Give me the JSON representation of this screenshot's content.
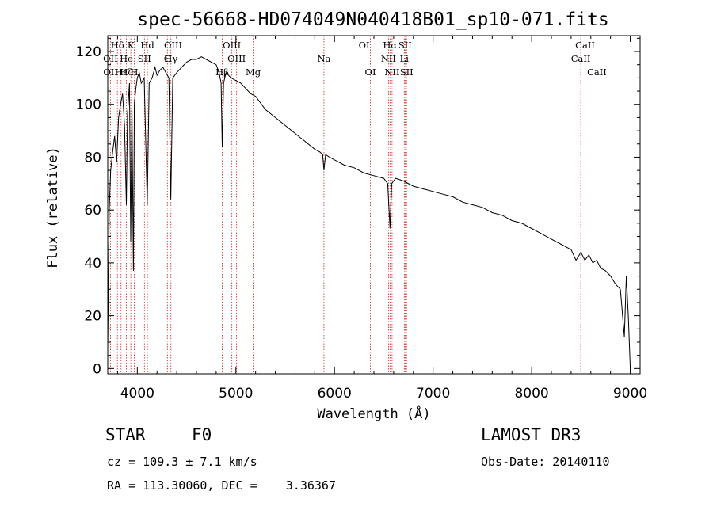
{
  "chart_data": {
    "type": "line",
    "title": "spec-56668-HD074049N040418B01_sp10-071.fits",
    "xlabel": "Wavelength (Å)",
    "ylabel": "Flux (relative)",
    "xlim": [
      3700,
      9100
    ],
    "ylim": [
      -2,
      126
    ],
    "xticks": [
      4000,
      5000,
      6000,
      7000,
      8000,
      9000
    ],
    "yticks": [
      0,
      20,
      40,
      60,
      80,
      100,
      120
    ],
    "series": [
      {
        "name": "flux",
        "x": [
          3700,
          3715,
          3730,
          3750,
          3770,
          3790,
          3810,
          3830,
          3850,
          3870,
          3889,
          3900,
          3920,
          3933,
          3945,
          3960,
          3970,
          3985,
          4000,
          4020,
          4040,
          4070,
          4101,
          4120,
          4150,
          4180,
          4200,
          4230,
          4260,
          4290,
          4320,
          4340,
          4360,
          4400,
          4450,
          4500,
          4550,
          4600,
          4650,
          4700,
          4750,
          4800,
          4830,
          4850,
          4861,
          4875,
          4900,
          4950,
          5000,
          5050,
          5100,
          5150,
          5200,
          5300,
          5400,
          5500,
          5600,
          5700,
          5800,
          5850,
          5880,
          5893,
          5910,
          5950,
          6000,
          6100,
          6200,
          6300,
          6400,
          6500,
          6540,
          6563,
          6580,
          6620,
          6700,
          6800,
          6900,
          7000,
          7100,
          7200,
          7300,
          7400,
          7500,
          7600,
          7700,
          7800,
          7900,
          8000,
          8100,
          8200,
          8300,
          8400,
          8450,
          8500,
          8540,
          8580,
          8620,
          8660,
          8700,
          8750,
          8800,
          8850,
          8900,
          8940,
          8960,
          8980,
          9000,
          9010
        ],
        "y": [
          8,
          60,
          75,
          82,
          88,
          78,
          95,
          100,
          104,
          92,
          62,
          96,
          108,
          48,
          100,
          37,
          100,
          106,
          110,
          112,
          108,
          110,
          62,
          108,
          110,
          114,
          111,
          113,
          114,
          112,
          110,
          64,
          110,
          112,
          114,
          116,
          117,
          117,
          118,
          117,
          116,
          115,
          112,
          108,
          84,
          108,
          112,
          110,
          109,
          108,
          106,
          104,
          103,
          98,
          95,
          92,
          89,
          86,
          83,
          82,
          81,
          75,
          81,
          80,
          79,
          77,
          76,
          74,
          73,
          72,
          70,
          53,
          70,
          72,
          71,
          69,
          68,
          67,
          66,
          65,
          63,
          62,
          61,
          59,
          58,
          56,
          55,
          53,
          51,
          49,
          47,
          45,
          41,
          44,
          41,
          43,
          40,
          41,
          38,
          37,
          35,
          32,
          30,
          12,
          35,
          20,
          0,
          0
        ]
      }
    ],
    "line_markers": [
      {
        "label": "Hδ",
        "wavelength": 3798,
        "row": 1
      },
      {
        "label": "OII",
        "wavelength": 3727,
        "row": 2
      },
      {
        "label": "OII",
        "wavelength": 3729,
        "row": 3
      },
      {
        "label": "Hε",
        "wavelength": 3835,
        "row": 3
      },
      {
        "label": "He",
        "wavelength": 3889,
        "row": 2
      },
      {
        "label": "Hζ",
        "wavelength": 3889,
        "row": 3
      },
      {
        "label": "K",
        "wavelength": 3934,
        "row": 1
      },
      {
        "label": "SII",
        "wavelength": 4072,
        "row": 2
      },
      {
        "label": "H",
        "wavelength": 3969,
        "row": 3
      },
      {
        "label": "Hd",
        "wavelength": 4102,
        "row": 1
      },
      {
        "label": "OIII",
        "wavelength": 4363,
        "row": 1
      },
      {
        "label": "Hγ",
        "wavelength": 4341,
        "row": 2
      },
      {
        "label": "G",
        "wavelength": 4305,
        "row": 2
      },
      {
        "label": "OIII",
        "wavelength": 4959,
        "row": 1
      },
      {
        "label": "OIII",
        "wavelength": 5007,
        "row": 2
      },
      {
        "label": "Hβ",
        "wavelength": 4861,
        "row": 3
      },
      {
        "label": "Mg",
        "wavelength": 5175,
        "row": 3
      },
      {
        "label": "Na",
        "wavelength": 5893,
        "row": 2
      },
      {
        "label": "OI",
        "wavelength": 6300,
        "row": 1
      },
      {
        "label": "OI",
        "wavelength": 6364,
        "row": 3
      },
      {
        "label": "Hα",
        "wavelength": 6563,
        "row": 1
      },
      {
        "label": "SII",
        "wavelength": 6716,
        "row": 1
      },
      {
        "label": "NII",
        "wavelength": 6548,
        "row": 2
      },
      {
        "label": "Li",
        "wavelength": 6708,
        "row": 2
      },
      {
        "label": "NII",
        "wavelength": 6584,
        "row": 3
      },
      {
        "label": "SII",
        "wavelength": 6731,
        "row": 3
      },
      {
        "label": "CaII",
        "wavelength": 8542,
        "row": 1
      },
      {
        "label": "CaII",
        "wavelength": 8498,
        "row": 2
      },
      {
        "label": "CaII",
        "wavelength": 8662,
        "row": 3
      }
    ],
    "marker_wavelengths": [
      3727,
      3798,
      3835,
      3889,
      3934,
      3969,
      4072,
      4102,
      4305,
      4341,
      4363,
      4861,
      4959,
      5007,
      5175,
      5893,
      6300,
      6364,
      6548,
      6563,
      6584,
      6708,
      6716,
      6731,
      8498,
      8542,
      8662
    ]
  },
  "info": {
    "object_type": "STAR",
    "subclass": "F0",
    "survey": "LAMOST DR3",
    "cz_line": "cz = 109.3 ± 7.1 km/s",
    "obs_date_line": "Obs-Date: 20140110",
    "radec_line": "RA = 113.30060, DEC =    3.36367"
  },
  "colors": {
    "spectrum": "#000000",
    "marker_line": "#cc2222",
    "background": "#ffffff"
  }
}
